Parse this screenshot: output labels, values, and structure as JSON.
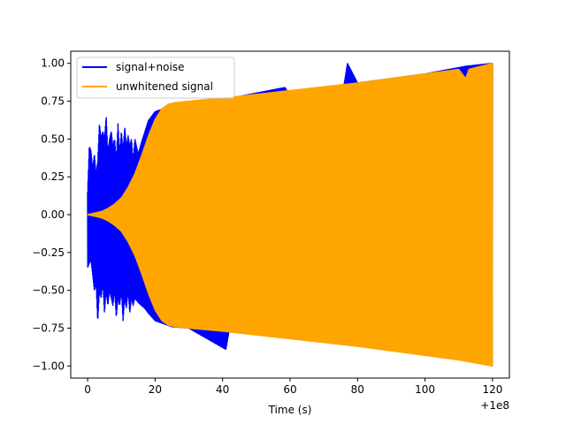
{
  "chart_data": {
    "type": "line",
    "title": "",
    "xlabel": "Time (s)",
    "ylabel": "",
    "x_offset_label": "+1e8",
    "xlim": [
      -5,
      125
    ],
    "ylim": [
      -1.08,
      1.08
    ],
    "x_ticks": [
      0,
      20,
      40,
      60,
      80,
      100,
      120
    ],
    "x_tick_labels": [
      "0",
      "20",
      "40",
      "60",
      "80",
      "100",
      "120"
    ],
    "y_ticks": [
      -1.0,
      -0.75,
      -0.5,
      -0.25,
      0.0,
      0.25,
      0.5,
      0.75,
      1.0
    ],
    "y_tick_labels": [
      "−1.00",
      "−0.75",
      "−0.50",
      "−0.25",
      "0.00",
      "0.25",
      "0.50",
      "0.75",
      "1.00"
    ],
    "grid": false,
    "legend_position": "top-left",
    "series": [
      {
        "name": "signal+noise",
        "color": "#0000ff",
        "upper_envelope": {
          "x": [
            0,
            0.5,
            1,
            1.5,
            2,
            2.5,
            3,
            3.5,
            4,
            4.5,
            5,
            5.5,
            6,
            6.5,
            7,
            7.5,
            8,
            8.5,
            9,
            9.5,
            10,
            10.5,
            11,
            11.5,
            12,
            12.5,
            13,
            13.5,
            14,
            15,
            16,
            17,
            18,
            20,
            25,
            30,
            40,
            58.5,
            60,
            76,
            77,
            80,
            100,
            112,
            120
          ],
          "y": [
            0.15,
            0.45,
            0.42,
            0.3,
            0.4,
            0.27,
            0.35,
            0.6,
            0.5,
            0.55,
            0.5,
            0.65,
            0.4,
            0.5,
            0.55,
            0.45,
            0.5,
            0.35,
            0.6,
            0.4,
            0.55,
            0.42,
            0.58,
            0.45,
            0.52,
            0.45,
            0.5,
            0.35,
            0.5,
            0.4,
            0.48,
            0.55,
            0.62,
            0.68,
            0.72,
            0.73,
            0.76,
            0.84,
            0.78,
            0.86,
            1.0,
            0.87,
            0.93,
            0.98,
            1.0
          ]
        },
        "lower_envelope": {
          "x": [
            0,
            0.5,
            1,
            1.5,
            2,
            2.5,
            3,
            3.5,
            4,
            4.5,
            5,
            5.5,
            6,
            6.5,
            7,
            7.5,
            8,
            8.5,
            9,
            9.5,
            10,
            10.5,
            11,
            11.5,
            12,
            12.5,
            13,
            13.5,
            14,
            15,
            16,
            17,
            18,
            20,
            25,
            30,
            41,
            42,
            60,
            80,
            100,
            120
          ],
          "y": [
            -0.35,
            -0.32,
            -0.3,
            -0.4,
            -0.5,
            -0.45,
            -0.71,
            -0.5,
            -0.55,
            -0.45,
            -0.65,
            -0.5,
            -0.6,
            -0.5,
            -0.55,
            -0.6,
            -0.5,
            -0.68,
            -0.55,
            -0.6,
            -0.5,
            -0.7,
            -0.55,
            -0.62,
            -0.5,
            -0.65,
            -0.55,
            -0.6,
            -0.55,
            -0.58,
            -0.6,
            -0.62,
            -0.65,
            -0.7,
            -0.74,
            -0.75,
            -0.89,
            -0.76,
            -0.78,
            -0.82,
            -0.88,
            -1.0
          ]
        }
      },
      {
        "name": "unwhitened signal",
        "color": "#ffa500",
        "upper_envelope": {
          "x": [
            0,
            2,
            4,
            6,
            8,
            10,
            12,
            14,
            16,
            18,
            20,
            22,
            24,
            26,
            30,
            40,
            60,
            80,
            100,
            110,
            112,
            113,
            120
          ],
          "y": [
            0.0,
            0.01,
            0.02,
            0.04,
            0.07,
            0.11,
            0.18,
            0.27,
            0.39,
            0.52,
            0.63,
            0.7,
            0.73,
            0.74,
            0.75,
            0.77,
            0.82,
            0.87,
            0.93,
            0.96,
            0.9,
            0.96,
            1.0
          ]
        },
        "lower_envelope": {
          "x": [
            0,
            2,
            4,
            6,
            8,
            10,
            12,
            14,
            16,
            18,
            20,
            22,
            24,
            26,
            30,
            40,
            60,
            80,
            100,
            110,
            120
          ],
          "y": [
            0.0,
            -0.01,
            -0.02,
            -0.04,
            -0.07,
            -0.11,
            -0.18,
            -0.27,
            -0.39,
            -0.52,
            -0.63,
            -0.7,
            -0.73,
            -0.74,
            -0.75,
            -0.77,
            -0.82,
            -0.87,
            -0.93,
            -0.96,
            -1.0
          ]
        }
      }
    ]
  }
}
